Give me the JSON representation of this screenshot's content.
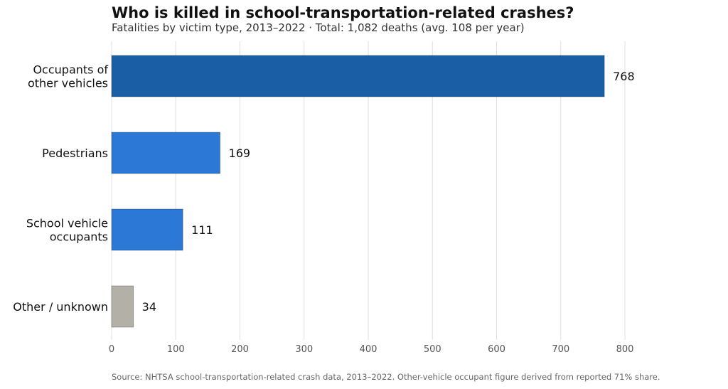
{
  "title": "Who is killed in school-transportation-related crashes?",
  "subtitle": "Fatalities by victim type, 2013–2022 · Total: 1,082 deaths (avg. 108 per year)",
  "source": "Source: NHTSA school-transportation-related crash data, 2013–2022. Other-vehicle occupant figure derived from reported 71% share.",
  "colors": {
    "highlight": "#1a5fa6",
    "primary": "#2b78d6",
    "other": "#b3b0a8",
    "grid": "#e2e0d6",
    "axis_text": "#555555"
  },
  "chart_data": {
    "type": "bar",
    "orientation": "horizontal",
    "categories": [
      [
        "Occupants of",
        "other vehicles"
      ],
      [
        "Pedestrians"
      ],
      [
        "School vehicle",
        "occupants"
      ],
      [
        "Other / unknown"
      ]
    ],
    "values": [
      768,
      169,
      111,
      34
    ],
    "value_labels": [
      "768",
      "169",
      "111",
      "34"
    ],
    "bar_colors": [
      "#1a5fa6",
      "#2b78d6",
      "#2b78d6",
      "#b3b0a8"
    ],
    "xlim": [
      0,
      800
    ],
    "xticks": [
      0,
      100,
      200,
      300,
      400,
      500,
      600,
      700,
      800
    ],
    "grid": "vertical",
    "xlabel": "",
    "ylabel": ""
  }
}
